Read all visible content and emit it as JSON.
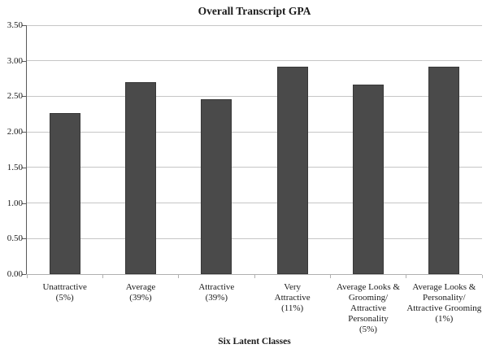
{
  "chart_data": {
    "type": "bar",
    "title": "Overall Transcript GPA",
    "xlabel": "Six Latent Classes",
    "ylabel": "",
    "categories": [
      "Unattractive\n(5%)",
      "Average\n(39%)",
      "Attractive\n(39%)",
      "Very\nAttractive\n(11%)",
      "Average Looks &\nGrooming/\nAttractive\nPersonality\n(5%)",
      "Average Looks &\nPersonality/\nAttractive Grooming\n(1%)"
    ],
    "values": [
      2.27,
      2.7,
      2.46,
      2.92,
      2.67,
      2.92
    ],
    "ylim": [
      0,
      3.5
    ],
    "ytick_step": 0.5,
    "ytick_labels": [
      "0.00",
      "0.50",
      "1.00",
      "1.50",
      "2.00",
      "2.50",
      "3.00",
      "3.50"
    ],
    "grid": true,
    "legend": false,
    "bar_color": "#4a4a4a",
    "bar_border_color": "#383838",
    "gridline_color": "#c6c6c6",
    "y_axis_color": "#595959",
    "x_axis_color": "#b0b0b0",
    "background_color": "#ffffff"
  }
}
